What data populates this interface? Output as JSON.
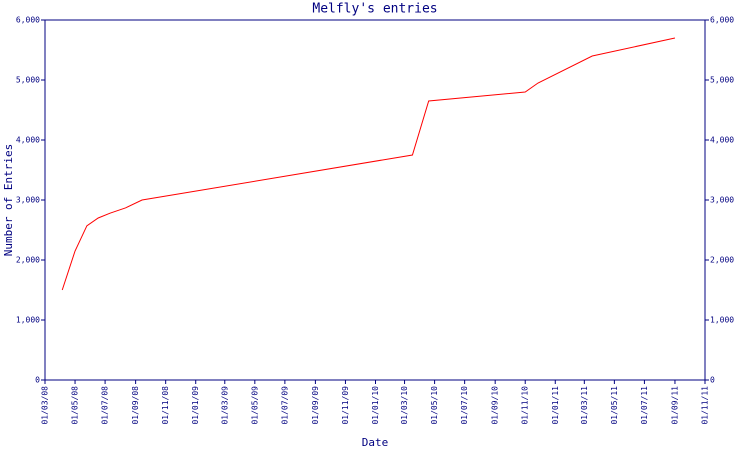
{
  "chart_data": {
    "type": "line",
    "title": "Melfly's entries",
    "x_label": "Date",
    "y_label": "Number of Entries",
    "x": [
      "05/04/08",
      "01/05/08",
      "25/05/08",
      "17/06/08",
      "11/07/08",
      "12/08/08",
      "14/09/08",
      "17/03/10",
      "19/04/10",
      "01/11/10",
      "27/11/10",
      "17/03/11",
      "01/09/11"
    ],
    "series": [
      {
        "name": "Entries",
        "color": "#ff0000",
        "values": [
          1500,
          2150,
          2570,
          2700,
          2780,
          2870,
          3000,
          3750,
          4650,
          4800,
          4950,
          5400,
          5700
        ]
      }
    ],
    "xlim": [
      "01/03/08",
      "01/11/11"
    ],
    "xticks": [
      "01/03/08",
      "01/05/08",
      "01/07/08",
      "01/09/08",
      "01/11/08",
      "01/01/09",
      "01/03/09",
      "01/05/09",
      "01/07/09",
      "01/09/09",
      "01/11/09",
      "01/01/10",
      "01/03/10",
      "01/05/10",
      "01/07/10",
      "01/09/10",
      "01/11/10",
      "01/01/11",
      "01/03/11",
      "01/05/11",
      "01/07/11",
      "01/09/11",
      "01/11/11"
    ],
    "ylim": [
      0,
      6000
    ],
    "yticks": [
      0,
      {
        "value": 1000,
        "label": "1,000"
      },
      {
        "value": 2000,
        "label": "2,000"
      },
      {
        "value": 3000,
        "label": "3,000"
      },
      {
        "value": 4000,
        "label": "4,000"
      },
      {
        "value": 5000,
        "label": "5,000"
      },
      {
        "value": 6000,
        "label": "6,000"
      }
    ],
    "axis_color": "#000080"
  }
}
